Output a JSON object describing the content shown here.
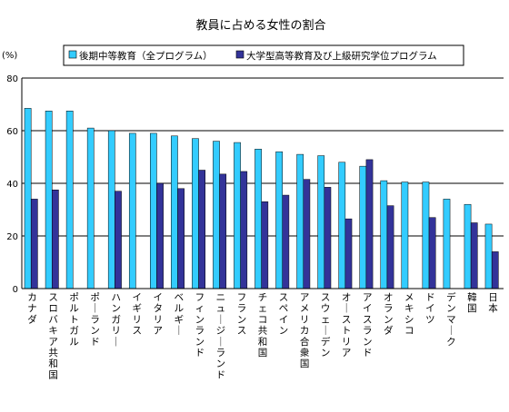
{
  "chart_data": {
    "type": "bar",
    "title": "教員に占める女性の割合",
    "ylabel": "(%)",
    "ylim": [
      0,
      80
    ],
    "yticks": [
      0,
      20,
      40,
      60,
      80
    ],
    "grid": true,
    "legend_position": "top",
    "categories": [
      "カナダ",
      "スロバキア共和国",
      "ポルトガル",
      "ポーランド",
      "ハンガリー",
      "イギリス",
      "イタリア",
      "ベルギー",
      "フィンランド",
      "ニュージーランド",
      "フランス",
      "チェコ共和国",
      "スペイン",
      "アメリカ合衆国",
      "スウェーデン",
      "オーストリア",
      "アイスランド",
      "オランダ",
      "メキシコ",
      "ドイツ",
      "デンマーク",
      "韓国",
      "日本"
    ],
    "series": [
      {
        "name": "後期中等教育（全プログラム）",
        "color": "#33ccff",
        "values": [
          68.5,
          67.5,
          67.5,
          61,
          60,
          59,
          59,
          58,
          57,
          56,
          55.5,
          53,
          52,
          51,
          50.5,
          48,
          46.5,
          41,
          40.5,
          40.5,
          34,
          32,
          24.5
        ]
      },
      {
        "name": "大学型高等教育及び上級研究学位プログラム",
        "color": "#333399",
        "values": [
          34,
          37.5,
          null,
          null,
          37,
          null,
          40,
          38,
          45,
          43.5,
          44.5,
          33,
          35.5,
          41.5,
          38.5,
          26.5,
          49,
          31.5,
          null,
          27,
          null,
          25,
          14
        ]
      }
    ]
  }
}
